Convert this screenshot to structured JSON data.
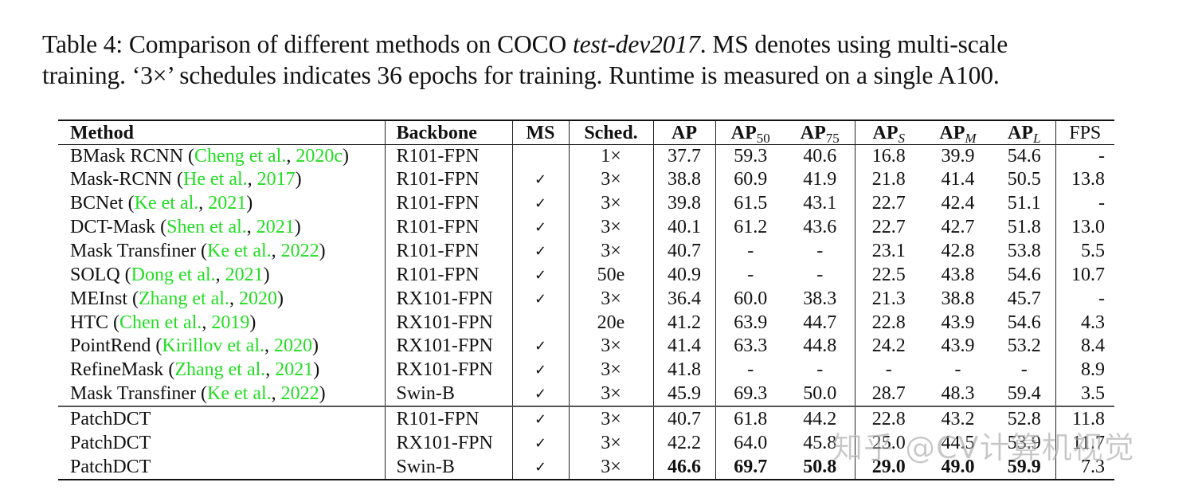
{
  "caption": {
    "label": "Table 4:",
    "line1_pre": "Comparison of different methods on COCO ",
    "line1_italic": "test-dev2017",
    "line1_post": ".  MS denotes using multi-scale",
    "line2": "training. ‘3×’ schedules indicates 36 epochs for training. Runtime is measured on a single A100."
  },
  "table": {
    "headers": {
      "method": "Method",
      "backbone": "Backbone",
      "ms": "MS",
      "sched": "Sched.",
      "ap": "AP",
      "ap50_base": "AP",
      "ap50_sub": "50",
      "ap75_base": "AP",
      "ap75_sub": "75",
      "aps_base": "AP",
      "aps_sub": "S",
      "apm_base": "AP",
      "apm_sub": "M",
      "apl_base": "AP",
      "apl_sub": "L",
      "fps": "FPS"
    },
    "check_symbol": "✓",
    "rows": [
      {
        "name": "BMask RCNN",
        "open": " (",
        "cite_author": "Cheng et al.",
        "sep": ", ",
        "cite_year": "2020c",
        "close": ")",
        "backbone": "R101-FPN",
        "ms": "",
        "sched": "1×",
        "ap": "37.7",
        "ap50": "59.3",
        "ap75": "40.6",
        "aps": "16.8",
        "apm": "39.9",
        "apl": "54.6",
        "fps": "-"
      },
      {
        "name": "Mask-RCNN",
        "open": " (",
        "cite_author": "He et al.",
        "sep": ", ",
        "cite_year": "2017",
        "close": ")",
        "backbone": "R101-FPN",
        "ms": "✓",
        "sched": "3×",
        "ap": "38.8",
        "ap50": "60.9",
        "ap75": "41.9",
        "aps": "21.8",
        "apm": "41.4",
        "apl": "50.5",
        "fps": "13.8"
      },
      {
        "name": "BCNet",
        "open": " (",
        "cite_author": "Ke et al.",
        "sep": ", ",
        "cite_year": "2021",
        "close": ")",
        "backbone": "R101-FPN",
        "ms": "✓",
        "sched": "3×",
        "ap": "39.8",
        "ap50": "61.5",
        "ap75": "43.1",
        "aps": "22.7",
        "apm": "42.4",
        "apl": "51.1",
        "fps": "-"
      },
      {
        "name": "DCT-Mask",
        "open": " (",
        "cite_author": "Shen et al.",
        "sep": ", ",
        "cite_year": "2021",
        "close": ")",
        "backbone": "R101-FPN",
        "ms": "✓",
        "sched": "3×",
        "ap": "40.1",
        "ap50": "61.2",
        "ap75": "43.6",
        "aps": "22.7",
        "apm": "42.7",
        "apl": "51.8",
        "fps": "13.0"
      },
      {
        "name": "Mask Transfiner",
        "open": " (",
        "cite_author": "Ke et al.",
        "sep": ", ",
        "cite_year": "2022",
        "close": ")",
        "backbone": "R101-FPN",
        "ms": "✓",
        "sched": "3×",
        "ap": "40.7",
        "ap50": "-",
        "ap75": "-",
        "aps": "23.1",
        "apm": "42.8",
        "apl": "53.8",
        "fps": "5.5"
      },
      {
        "name": "SOLQ",
        "open": " (",
        "cite_author": "Dong et al.",
        "sep": ", ",
        "cite_year": "2021",
        "close": ")",
        "backbone": "R101-FPN",
        "ms": "✓",
        "sched": "50e",
        "ap": "40.9",
        "ap50": "-",
        "ap75": "-",
        "aps": "22.5",
        "apm": "43.8",
        "apl": "54.6",
        "fps": "10.7"
      },
      {
        "name": "MEInst",
        "open": " (",
        "cite_author": "Zhang et al.",
        "sep": ", ",
        "cite_year": "2020",
        "close": ")",
        "backbone": "RX101-FPN",
        "ms": "✓",
        "sched": "3×",
        "ap": "36.4",
        "ap50": "60.0",
        "ap75": "38.3",
        "aps": "21.3",
        "apm": "38.8",
        "apl": "45.7",
        "fps": "-"
      },
      {
        "name": "HTC",
        "open": " (",
        "cite_author": "Chen et al.",
        "sep": ", ",
        "cite_year": "2019",
        "close": ")",
        "backbone": "RX101-FPN",
        "ms": "",
        "sched": "20e",
        "ap": "41.2",
        "ap50": "63.9",
        "ap75": "44.7",
        "aps": "22.8",
        "apm": "43.9",
        "apl": "54.6",
        "fps": "4.3"
      },
      {
        "name": "PointRend",
        "open": " (",
        "cite_author": "Kirillov et al.",
        "sep": ", ",
        "cite_year": "2020",
        "close": ")",
        "backbone": "RX101-FPN",
        "ms": "✓",
        "sched": "3×",
        "ap": "41.4",
        "ap50": "63.3",
        "ap75": "44.8",
        "aps": "24.2",
        "apm": "43.9",
        "apl": "53.2",
        "fps": "8.4"
      },
      {
        "name": "RefineMask",
        "open": " (",
        "cite_author": "Zhang et al.",
        "sep": ", ",
        "cite_year": "2021",
        "close": ")",
        "backbone": "RX101-FPN",
        "ms": "✓",
        "sched": "3×",
        "ap": "41.8",
        "ap50": "-",
        "ap75": "-",
        "aps": "-",
        "apm": "-",
        "apl": "-",
        "fps": "8.9"
      },
      {
        "name": "Mask Transfiner",
        "open": " (",
        "cite_author": "Ke et al.",
        "sep": ", ",
        "cite_year": "2022",
        "close": ")",
        "backbone": "Swin-B",
        "ms": "✓",
        "sched": "3×",
        "ap": "45.9",
        "ap50": "69.3",
        "ap75": "50.0",
        "aps": "28.7",
        "apm": "48.3",
        "apl": "59.4",
        "fps": "3.5"
      }
    ],
    "ours": [
      {
        "name": "PatchDCT",
        "backbone": "R101-FPN",
        "ms": "✓",
        "sched": "3×",
        "ap": "40.7",
        "ap50": "61.8",
        "ap75": "44.2",
        "aps": "22.8",
        "apm": "43.2",
        "apl": "52.8",
        "fps": "11.8"
      },
      {
        "name": "PatchDCT",
        "backbone": "RX101-FPN",
        "ms": "✓",
        "sched": "3×",
        "ap": "42.2",
        "ap50": "64.0",
        "ap75": "45.8",
        "aps": "25.0",
        "apm": "44.5",
        "apl": "53.9",
        "fps": "11.7"
      },
      {
        "name": "PatchDCT",
        "backbone": "Swin-B",
        "ms": "✓",
        "sched": "3×",
        "ap": "46.6",
        "ap50": "69.7",
        "ap75": "50.8",
        "aps": "29.0",
        "apm": "49.0",
        "apl": "59.9",
        "fps": "7.3"
      }
    ]
  },
  "colors": {
    "citation": "#22dd22",
    "text": "#111111",
    "watermark": "#969696"
  },
  "watermark": "知乎 @CV计算机视觉"
}
